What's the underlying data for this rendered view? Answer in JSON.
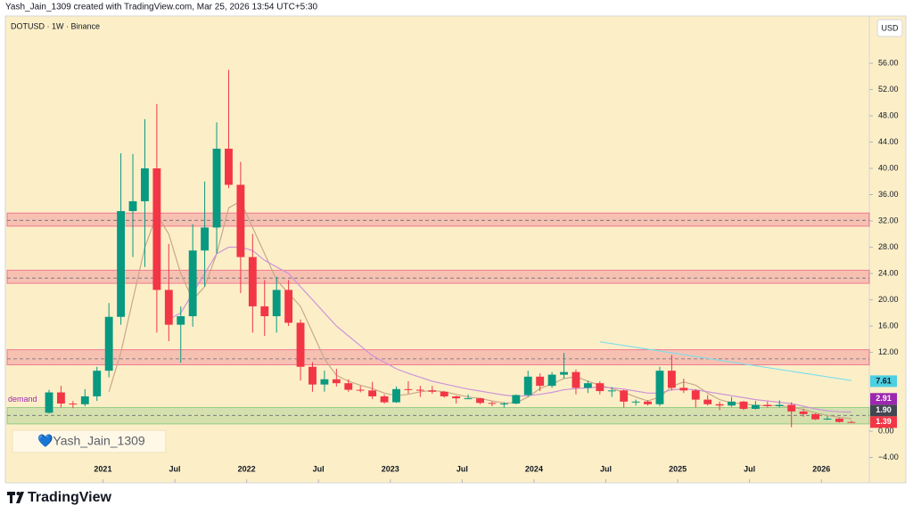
{
  "chart_data": {
    "type": "candlestick",
    "caption": "Yash_Jain_1309 created with TradingView.com, Mar 25, 2026 13:54 UTC+5:30",
    "title": "DOTUSD · 1W · Binance",
    "currency": "USD",
    "watermark": "💙Yash_Jain_1309",
    "brand": "TradingView",
    "up_color": "#089981",
    "down_color": "#f23645",
    "x": [
      "2020-08",
      "2020-09",
      "2020-10",
      "2020-11",
      "2020-12",
      "2021-01",
      "2021-02",
      "2021-03",
      "2021-04",
      "2021-05",
      "2021-06",
      "2021-07",
      "2021-08",
      "2021-09",
      "2021-10",
      "2021-11",
      "2021-12",
      "2022-01",
      "2022-02",
      "2022-03",
      "2022-04",
      "2022-05",
      "2022-06",
      "2022-07",
      "2022-08",
      "2022-09",
      "2022-10",
      "2022-11",
      "2022-12",
      "2023-01",
      "2023-02",
      "2023-03",
      "2023-04",
      "2023-05",
      "2023-06",
      "2023-07",
      "2023-08",
      "2023-09",
      "2023-10",
      "2023-11",
      "2023-12",
      "2024-01",
      "2024-02",
      "2024-03",
      "2024-04",
      "2024-05",
      "2024-06",
      "2024-07",
      "2024-08",
      "2024-09",
      "2024-10",
      "2024-11",
      "2024-12",
      "2025-01",
      "2025-02",
      "2025-03",
      "2025-04",
      "2025-05",
      "2025-06",
      "2025-07",
      "2025-08",
      "2025-09",
      "2025-10",
      "2025-11",
      "2025-12",
      "2026-01",
      "2026-02",
      "2026-03"
    ],
    "open": [
      2.8,
      5.9,
      4.2,
      4.1,
      5.3,
      9.2,
      17.4,
      33.5,
      35,
      40,
      21.5,
      16.2,
      17.5,
      27.5,
      31,
      43,
      37.5,
      26.5,
      19,
      17.5,
      21.5,
      16.5,
      9.8,
      7.1,
      7.9,
      7.3,
      6.3,
      6.2,
      5.3,
      4.4,
      6.4,
      6.3,
      6.2,
      6,
      5.3,
      5,
      5,
      4.3,
      4.2,
      4.2,
      5.5,
      8.3,
      6.9,
      8.6,
      9,
      6.6,
      7.3,
      6.1,
      6.2,
      4.5,
      4.5,
      4.1,
      9.2,
      6.6,
      6.2,
      4.8,
      4.1,
      3.9,
      4.5,
      3.4,
      4,
      3.8,
      4,
      3,
      2.6,
      1.8,
      1.9,
      1.4
    ],
    "high": [
      6.3,
      6.9,
      4.6,
      6.4,
      9.8,
      19.5,
      42.3,
      42.2,
      47.5,
      49.8,
      28.5,
      19,
      31.5,
      38,
      47,
      55,
      41,
      30,
      23,
      23.5,
      23,
      17,
      10.5,
      9.2,
      9.5,
      7.9,
      6.9,
      7.5,
      5.6,
      6.8,
      7.6,
      6.9,
      6.9,
      6.1,
      5.4,
      5.6,
      5.1,
      4.5,
      4.4,
      5.6,
      9.2,
      8.8,
      9,
      11.9,
      9.4,
      7.7,
      7.6,
      6.7,
      6.3,
      4.8,
      4.7,
      9.8,
      11.6,
      8,
      6.4,
      5.5,
      4.5,
      5.2,
      4.6,
      4.6,
      4.5,
      4.7,
      4.4,
      3.4,
      2.7,
      2.3,
      2,
      1.6
    ],
    "low": [
      2.7,
      3.6,
      3.5,
      3.8,
      4.6,
      8.2,
      16.2,
      26.5,
      25,
      15,
      13.7,
      10.4,
      15.9,
      22,
      27,
      37,
      21,
      15,
      14.5,
      15,
      16,
      7.7,
      6,
      6,
      6.8,
      6,
      5.9,
      4.9,
      4.2,
      4.3,
      5.7,
      5.2,
      5.7,
      5.1,
      4.2,
      4.9,
      4.1,
      3.8,
      3.6,
      4.1,
      5.3,
      6.1,
      6.6,
      8,
      5.6,
      5.8,
      5.6,
      5.2,
      3.6,
      3.9,
      3.9,
      3.8,
      6.2,
      5.8,
      3.6,
      3.9,
      3.2,
      3.7,
      3.2,
      3.3,
      3.6,
      3.6,
      0.6,
      2.2,
      1.7,
      1.7,
      1.3,
      1.3
    ],
    "close": [
      5.9,
      4.2,
      4.1,
      5.3,
      9.2,
      17.4,
      33.5,
      35,
      40,
      21.5,
      16.2,
      17.5,
      27.5,
      31,
      43,
      37.5,
      26.5,
      19,
      17.5,
      21.5,
      16.5,
      9.8,
      7.1,
      7.9,
      7.3,
      6.3,
      6.2,
      5.3,
      4.4,
      6.4,
      6.3,
      6.2,
      6,
      5.3,
      5,
      5,
      4.3,
      4.2,
      4.2,
      5.5,
      8.3,
      6.9,
      8.6,
      9,
      6.6,
      7.3,
      6.1,
      6.2,
      4.5,
      4.5,
      4.1,
      9.2,
      6.6,
      6.2,
      4.8,
      4.1,
      3.9,
      4.5,
      3.4,
      4,
      3.8,
      4,
      3,
      2.6,
      1.8,
      1.9,
      1.4,
      1.39
    ],
    "lines": [
      {
        "color": "#c8a88a",
        "x": [
          "2021-01",
          "2021-02",
          "2021-03",
          "2021-04",
          "2021-05",
          "2021-06",
          "2021-07",
          "2021-08",
          "2021-09",
          "2021-10",
          "2021-11",
          "2021-12",
          "2022-01",
          "2022-02",
          "2022-03",
          "2022-04",
          "2022-05",
          "2022-06",
          "2022-07",
          "2022-08",
          "2022-09",
          "2022-10",
          "2022-11",
          "2022-12",
          "2023-01",
          "2023-02",
          "2023-03",
          "2023-04",
          "2023-05",
          "2023-06",
          "2023-07",
          "2023-08",
          "2023-09",
          "2023-10",
          "2023-11",
          "2023-12",
          "2024-01",
          "2024-02",
          "2024-03",
          "2024-04",
          "2024-05",
          "2024-06",
          "2024-07",
          "2024-08",
          "2024-09",
          "2024-10",
          "2024-11",
          "2024-12",
          "2025-01",
          "2025-02",
          "2025-03",
          "2025-04",
          "2025-05",
          "2025-06",
          "2025-07",
          "2025-08",
          "2025-09",
          "2025-10",
          "2025-11",
          "2025-12",
          "2026-01",
          "2026-02",
          "2026-03"
        ],
        "values": [
          6,
          12,
          20,
          28,
          33,
          30,
          24,
          20,
          22,
          27,
          34,
          35,
          31,
          27,
          23,
          21,
          19,
          15,
          11,
          8.5,
          7.6,
          7,
          6.5,
          5.8,
          5.4,
          5.6,
          6,
          6.2,
          6,
          5.6,
          5.2,
          5,
          4.6,
          4.3,
          4.3,
          5.2,
          6.5,
          7.2,
          8,
          8.3,
          7.6,
          7,
          6.5,
          5.9,
          5.2,
          4.6,
          5.2,
          6.8,
          7.5,
          7,
          5.8,
          4.8,
          4.3,
          4.2,
          3.9,
          3.9,
          3.9,
          3.7,
          3.3,
          2.8,
          2.4,
          2.1,
          1.9
        ]
      },
      {
        "color": "#ce93d8",
        "x": [
          "2021-06",
          "2021-07",
          "2021-08",
          "2021-09",
          "2021-10",
          "2021-11",
          "2021-12",
          "2022-01",
          "2022-02",
          "2022-03",
          "2022-04",
          "2022-05",
          "2022-06",
          "2022-07",
          "2022-08",
          "2022-09",
          "2022-10",
          "2022-11",
          "2022-12",
          "2023-01",
          "2023-02",
          "2023-03",
          "2023-04",
          "2023-05",
          "2023-06",
          "2023-07",
          "2023-08",
          "2023-09",
          "2023-10",
          "2023-11",
          "2023-12",
          "2024-01",
          "2024-02",
          "2024-03",
          "2024-04",
          "2024-05",
          "2024-06",
          "2024-07",
          "2024-08",
          "2024-09",
          "2024-10",
          "2024-11",
          "2024-12",
          "2025-01",
          "2025-02",
          "2025-03",
          "2025-04",
          "2025-05",
          "2025-06",
          "2025-07",
          "2025-08",
          "2025-09",
          "2025-10",
          "2025-11",
          "2025-12",
          "2026-01",
          "2026-02",
          "2026-03"
        ],
        "values": [
          17,
          18,
          21,
          24,
          27,
          28,
          28,
          27.5,
          26,
          25,
          24,
          22,
          20,
          18,
          16,
          14.5,
          13,
          11.5,
          10.5,
          9.5,
          8.8,
          8.2,
          7.6,
          7.2,
          6.8,
          6.4,
          6.1,
          5.8,
          5.5,
          5.3,
          5.4,
          5.6,
          5.9,
          6.3,
          6.5,
          6.6,
          6.7,
          6.6,
          6.4,
          6.1,
          5.8,
          5.8,
          6.3,
          6.4,
          6.3,
          6,
          5.7,
          5.4,
          5.1,
          4.8,
          4.6,
          4.4,
          4.2,
          3.8,
          3.4,
          3.1,
          2.95,
          2.91
        ]
      },
      {
        "color": "#80deea",
        "x": [
          "2024-06",
          "2026-03"
        ],
        "values": [
          13.6,
          7.7
        ]
      }
    ],
    "zones": [
      {
        "low": 31.2,
        "high": 33.2,
        "line": 32.1,
        "color": "#e91e63"
      },
      {
        "low": 22.5,
        "high": 24.5,
        "line": 23.3,
        "color": "#e91e63"
      },
      {
        "low": 10.1,
        "high": 12.4,
        "line": 11,
        "color": "#e91e63"
      },
      {
        "low": 1.1,
        "high": 3.6,
        "line": 2.4,
        "color": "#4caf50",
        "label": "demand"
      }
    ],
    "price_tags": [
      {
        "value": 7.61,
        "color": "#4dd0e1",
        "text_color": "#131722"
      },
      {
        "value": 2.91,
        "color": "#9c27b0",
        "text_color": "#ffffff"
      },
      {
        "value": 1.9,
        "label": "1.90",
        "color": "#434651",
        "text_color": "#ffffff"
      },
      {
        "value": 1.39,
        "color": "#f23645",
        "text_color": "#ffffff"
      }
    ],
    "xlim": [
      "2020-05",
      "2026-05"
    ],
    "xticks": [
      {
        "value": "2021-01",
        "label": "2021"
      },
      {
        "value": "2021-07",
        "label": "Jul"
      },
      {
        "value": "2022-01",
        "label": "2022"
      },
      {
        "value": "2022-07",
        "label": "Jul"
      },
      {
        "value": "2023-01",
        "label": "2023"
      },
      {
        "value": "2023-07",
        "label": "Jul"
      },
      {
        "value": "2024-01",
        "label": "2024"
      },
      {
        "value": "2024-07",
        "label": "Jul"
      },
      {
        "value": "2025-01",
        "label": "2025"
      },
      {
        "value": "2025-07",
        "label": "Jul"
      },
      {
        "value": "2026-01",
        "label": "2026"
      }
    ],
    "ylim": [
      -7.86,
      63.19
    ],
    "yticks": [
      {
        "value": -4,
        "label": "−4.00"
      },
      {
        "value": 0,
        "label": "0.00"
      },
      {
        "value": 12,
        "label": "12.00"
      },
      {
        "value": 16,
        "label": "16.00"
      },
      {
        "value": 20,
        "label": "20.00"
      },
      {
        "value": 24,
        "label": "24.00"
      },
      {
        "value": 28,
        "label": "28.00"
      },
      {
        "value": 32,
        "label": "32.00"
      },
      {
        "value": 36,
        "label": "36.00"
      },
      {
        "value": 40,
        "label": "40.00"
      },
      {
        "value": 44,
        "label": "44.00"
      },
      {
        "value": 48,
        "label": "48.00"
      },
      {
        "value": 52,
        "label": "52.00"
      },
      {
        "value": 56,
        "label": "56.00"
      }
    ]
  }
}
